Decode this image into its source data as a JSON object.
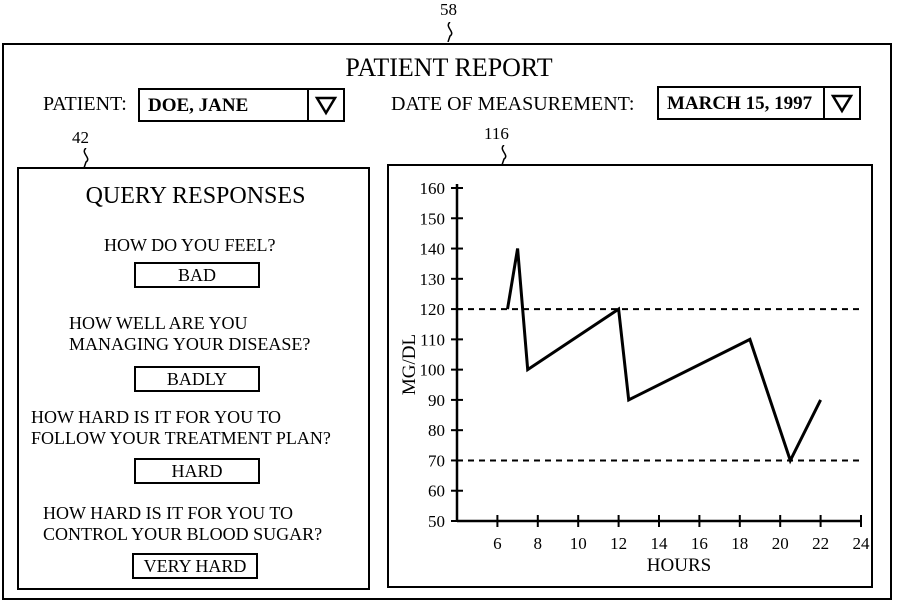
{
  "refs": {
    "report": "58",
    "query_panel": "42",
    "chart_panel": "116"
  },
  "report": {
    "title": "PATIENT REPORT",
    "patient_label": "PATIENT:",
    "patient_value": "DOE, JANE",
    "date_label": "DATE OF MEASUREMENT:",
    "date_value": "MARCH 15, 1997"
  },
  "query": {
    "title": "QUERY RESPONSES",
    "items": [
      {
        "question": [
          "HOW DO YOU FEEL?"
        ],
        "answer": "BAD"
      },
      {
        "question": [
          "HOW WELL ARE YOU",
          "MANAGING YOUR DISEASE?"
        ],
        "answer": "BADLY"
      },
      {
        "question": [
          "HOW HARD IS IT FOR YOU  TO",
          "FOLLOW YOUR TREATMENT PLAN?"
        ],
        "answer": "HARD"
      },
      {
        "question": [
          "HOW HARD IS IT FOR YOU TO",
          "CONTROL YOUR BLOOD SUGAR?"
        ],
        "answer": "VERY HARD"
      }
    ]
  },
  "icons": {
    "dropdown": "triangle-down-icon"
  },
  "chart_data": {
    "type": "line",
    "xlabel": "HOURS",
    "ylabel": "MG/DL",
    "xlim": [
      4,
      24
    ],
    "ylim": [
      50,
      160
    ],
    "x_ticks": [
      6,
      8,
      10,
      12,
      14,
      16,
      18,
      20,
      22,
      24
    ],
    "y_ticks": [
      50,
      60,
      70,
      80,
      90,
      100,
      110,
      120,
      130,
      140,
      150,
      160
    ],
    "series": [
      {
        "x": [
          6.5,
          7,
          7.5,
          12,
          12.5,
          18.5,
          20.5,
          22
        ],
        "y": [
          120,
          140,
          100,
          120,
          90,
          110,
          70,
          90
        ]
      }
    ],
    "reference_lines": [
      120,
      70
    ],
    "grid": false
  }
}
